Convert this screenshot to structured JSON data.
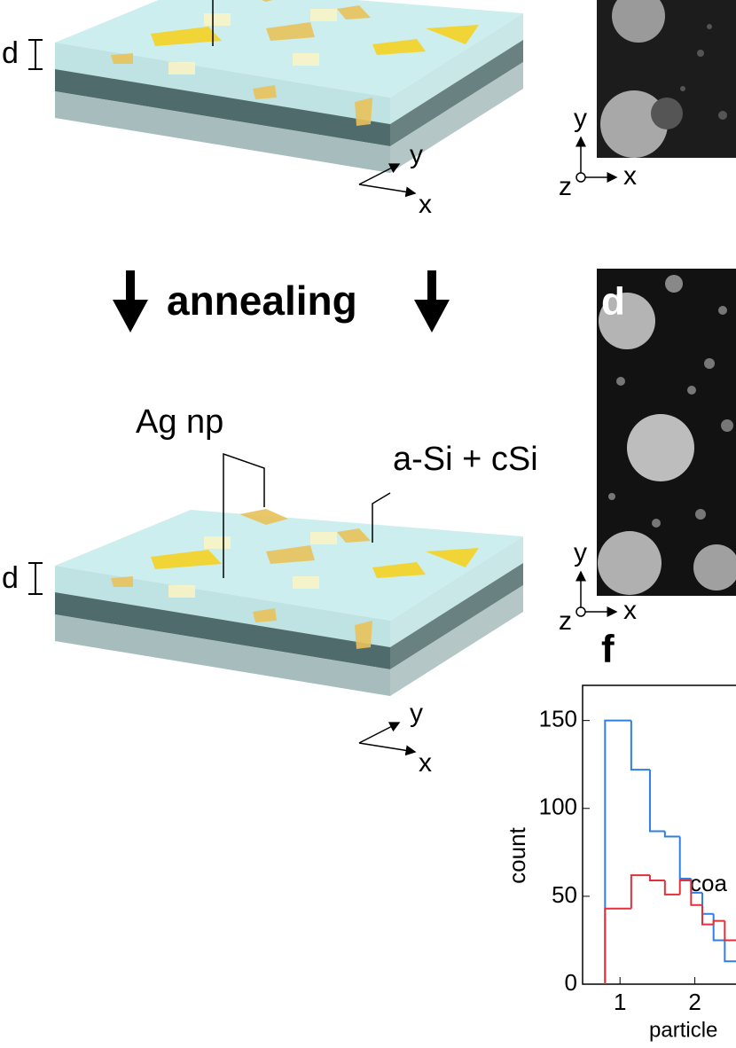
{
  "figure": {
    "schematic_top": {
      "thickness_label": "d",
      "axis_y": "y",
      "axis_x": "x"
    },
    "sem_top": {
      "axis_y": "y",
      "axis_z": "z",
      "axis_x": "x"
    },
    "annealing": "annealing",
    "schematic_bottom": {
      "np_label": "Ag np",
      "layer_label": "a-Si + cSi",
      "thickness_label": "d",
      "axis_y": "y",
      "axis_x": "x"
    },
    "sem_bottom": {
      "panel_label": "d",
      "axis_y": "y",
      "axis_z": "z",
      "axis_x": "x"
    },
    "histogram_panel_label": "f"
  },
  "chart_data": {
    "type": "histogram",
    "xlabel": "particle",
    "ylabel": "count",
    "annotation": "coa",
    "bins": [
      0.8,
      1.15,
      1.4,
      1.6,
      1.8,
      1.95,
      2.1,
      2.25,
      2.4,
      2.55
    ],
    "series": [
      {
        "color": "#2f7fe0",
        "values": [
          150,
          122,
          87,
          84,
          60,
          52,
          40,
          25,
          13
        ]
      },
      {
        "color": "#e0303a",
        "values": [
          43,
          62,
          59,
          51,
          59,
          45,
          34,
          36,
          25
        ]
      }
    ],
    "xlim": [
      0.5,
      2.55
    ],
    "ylim": [
      0,
      170
    ],
    "xticks": [
      1,
      2
    ],
    "yticks": [
      0,
      50,
      100,
      150
    ]
  }
}
